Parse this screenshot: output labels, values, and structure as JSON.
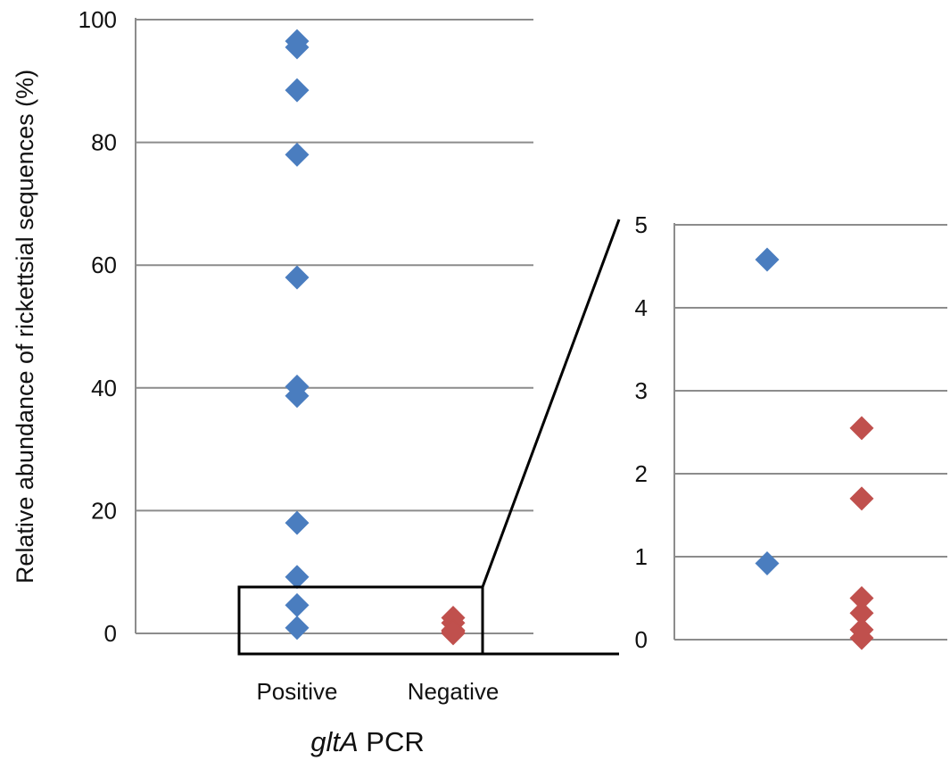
{
  "chart_data": [
    {
      "type": "scatter",
      "title": "",
      "ylabel": "Relative abundance of rickettsial sequences (%)",
      "xlabel_italic": "gltA",
      "xlabel_rest": " PCR",
      "categories": [
        "Positive",
        "Negative"
      ],
      "ylim": [
        0,
        100
      ],
      "yticks": [
        "0",
        "20",
        "40",
        "60",
        "80",
        "100"
      ],
      "grid": true,
      "series": [
        {
          "category": "Positive",
          "color": "#4a7dbf",
          "values": [
            96.5,
            95.5,
            88.5,
            78,
            58,
            40.2,
            38.7,
            18,
            9.2,
            4.6,
            0.9
          ]
        },
        {
          "category": "Negative",
          "color": "#c0504d",
          "values": [
            2.55,
            1.7,
            0.5,
            0.35,
            0.1,
            0.02
          ]
        }
      ]
    },
    {
      "type": "scatter",
      "title": "",
      "categories": [
        "Positive",
        "Negative"
      ],
      "ylim": [
        0,
        5
      ],
      "yticks": [
        "0",
        "1",
        "2",
        "3",
        "4",
        "5"
      ],
      "grid": true,
      "series": [
        {
          "category": "Positive",
          "color": "#4a7dbf",
          "values": [
            4.58,
            0.92
          ]
        },
        {
          "category": "Negative",
          "color": "#c0504d",
          "values": [
            2.55,
            1.7,
            0.5,
            0.32,
            0.12,
            0.02
          ]
        }
      ]
    }
  ]
}
